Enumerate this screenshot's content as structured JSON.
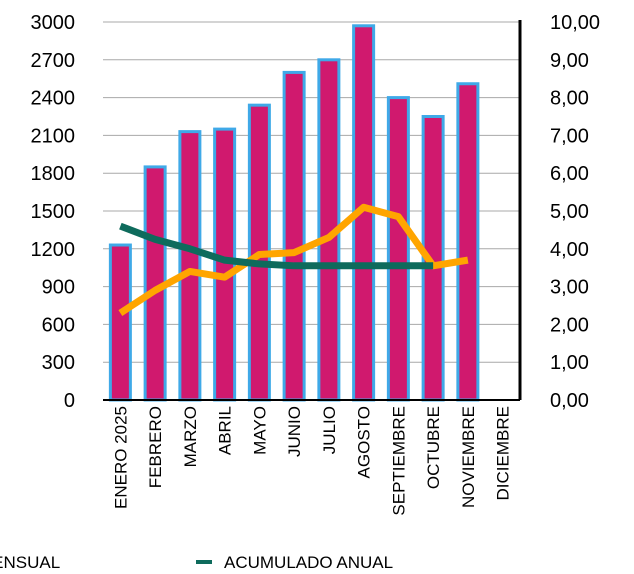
{
  "chart_data": {
    "type": "bar",
    "categories": [
      "ENERO 2025",
      "FEBRERO",
      "MARZO",
      "ABRIL",
      "MAYO",
      "JUNIO",
      "JULIO",
      "AGOSTO",
      "SEPTIEMBRE",
      "OCTUBRE",
      "NOVIEMBRE",
      "DICIEMBRE"
    ],
    "bars": {
      "values": [
        1230,
        1850,
        2130,
        2150,
        2340,
        2600,
        2700,
        2970,
        2400,
        2250,
        2510,
        null
      ],
      "color": "#d0196e",
      "border_color": "#3fa9e8"
    },
    "lines": [
      {
        "name": "MENSUAL",
        "axis": "right",
        "color": "#ffa500",
        "values": [
          2.3,
          2.9,
          3.4,
          3.25,
          3.85,
          3.9,
          4.3,
          5.1,
          4.85,
          3.55,
          3.7,
          null
        ]
      },
      {
        "name": "ACUMULADO ANUAL",
        "axis": "right",
        "color": "#0e6b5c",
        "values": [
          4.6,
          4.25,
          4.0,
          3.7,
          3.6,
          3.55,
          3.55,
          3.55,
          3.55,
          3.55,
          null,
          null
        ]
      }
    ],
    "left_axis": {
      "ylim": [
        0,
        3000
      ],
      "ticks": [
        "0",
        "300",
        "600",
        "900",
        "1200",
        "1500",
        "1800",
        "2100",
        "2400",
        "2700",
        "3000"
      ]
    },
    "right_axis": {
      "ylim": [
        0,
        10
      ],
      "ticks": [
        "0,00",
        "1,00",
        "2,00",
        "3,00",
        "4,00",
        "5,00",
        "6,00",
        "7,00",
        "8,00",
        "9,00",
        "10,00"
      ]
    },
    "grid": true,
    "legend": {
      "placement": "bottom",
      "items": [
        "MENSUAL",
        "ACUMULADO ANUAL"
      ]
    }
  }
}
